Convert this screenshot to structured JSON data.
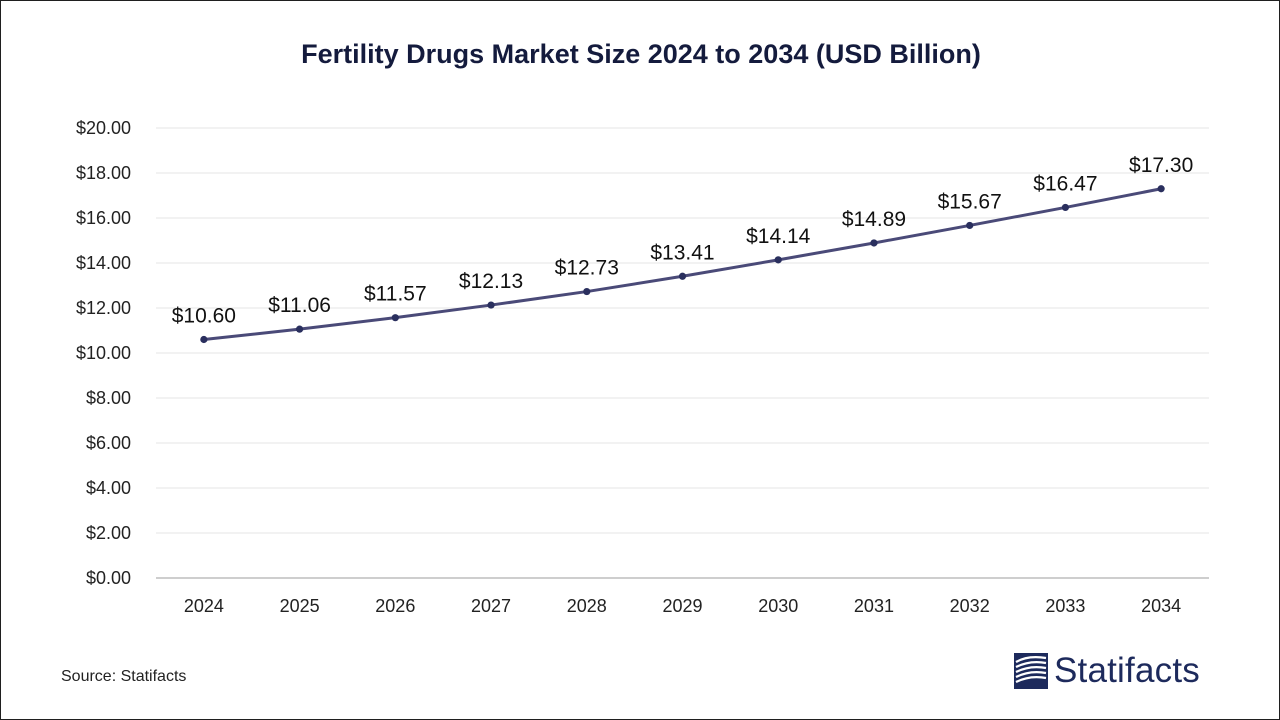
{
  "chart_data": {
    "type": "line",
    "title": "Fertility Drugs Market Size 2024 to 2034 (USD Billion)",
    "categories": [
      "2024",
      "2025",
      "2026",
      "2027",
      "2028",
      "2029",
      "2030",
      "2031",
      "2032",
      "2033",
      "2034"
    ],
    "values": [
      10.6,
      11.06,
      11.57,
      12.13,
      12.73,
      13.41,
      14.14,
      14.89,
      15.67,
      16.47,
      17.3
    ],
    "data_labels": [
      "$10.60",
      "$11.06",
      "$11.57",
      "$12.13",
      "$12.73",
      "$13.41",
      "$14.14",
      "$14.89",
      "$15.67",
      "$16.47",
      "$17.30"
    ],
    "y_ticks": [
      0,
      2,
      4,
      6,
      8,
      10,
      12,
      14,
      16,
      18,
      20
    ],
    "y_tick_labels": [
      "$0.00",
      "$2.00",
      "$4.00",
      "$6.00",
      "$8.00",
      "$10.00",
      "$12.00",
      "$14.00",
      "$16.00",
      "$18.00",
      "$20.00"
    ],
    "ylim": [
      0,
      20
    ],
    "grid": true,
    "legend": "none",
    "line_color": "#4a4a78",
    "marker_color": "#2a2f5e"
  },
  "footer": {
    "source": "Source: Statifacts",
    "brand": "Statifacts",
    "brand_color": "#1d2a5c"
  }
}
